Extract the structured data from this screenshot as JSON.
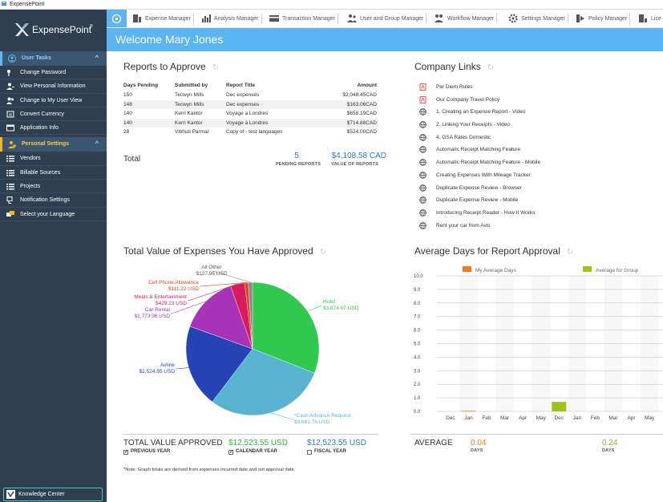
{
  "window": {
    "title": "ExpensePoint"
  },
  "brand": {
    "logo_text": "ExpensePoint",
    "reg": "®"
  },
  "sidebar": {
    "user_tasks": {
      "title": "User Tasks",
      "items": [
        {
          "label": "Change Password",
          "icon": "key-icon"
        },
        {
          "label": "View Personal Information",
          "icon": "person-icon"
        },
        {
          "label": "Change to My User View",
          "icon": "users-icon"
        },
        {
          "label": "Convert Currency",
          "icon": "currency-icon"
        },
        {
          "label": "Application Info",
          "icon": "app-info-icon"
        }
      ]
    },
    "personal_settings": {
      "title": "Personal Settings",
      "items": [
        {
          "label": "Vendors",
          "icon": "list-icon"
        },
        {
          "label": "Billable Sources",
          "icon": "list-icon"
        },
        {
          "label": "Projects",
          "icon": "list-icon"
        },
        {
          "label": "Notification Settings",
          "icon": "notification-icon"
        },
        {
          "label": "Select your Language",
          "icon": "language-icon"
        }
      ]
    },
    "knowledge_center": "Knowledge Center"
  },
  "topnav": {
    "tabs": [
      {
        "label": "Expense Manager",
        "icon": "expense-icon"
      },
      {
        "label": "Analysis Manager",
        "icon": "chart-icon"
      },
      {
        "label": "Transaction Manager",
        "icon": "transaction-icon"
      },
      {
        "label": "User and Group Manager",
        "icon": "users-icon"
      },
      {
        "label": "Workflow Manager",
        "icon": "workflow-icon"
      },
      {
        "label": "Settings Manager",
        "icon": "gear-icon"
      },
      {
        "label": "Policy Manager",
        "icon": "policy-icon"
      },
      {
        "label": "Lice",
        "icon": "license-icon"
      }
    ]
  },
  "welcome": "Welcome Mary Jones",
  "reports": {
    "title": "Reports to Approve",
    "headers": [
      "Days Pending",
      "Submitted by",
      "Report Title",
      "Amount"
    ],
    "rows": [
      [
        "150",
        "Tecwyn Mills",
        "Dec expenses",
        "$2,048.45CAD"
      ],
      [
        "148",
        "Tecwyn Mills",
        "Dec expenses",
        "$163.06CAD"
      ],
      [
        "140",
        "Kerri Kantor",
        "Voyage a Londres",
        "$658.19CAD"
      ],
      [
        "140",
        "Kerri Kantor",
        "Voyage à Londres",
        "$714.88CAD"
      ],
      [
        "28",
        "Vibhuti Parmar",
        "Copy of - test languages",
        "$524.00CAD"
      ]
    ],
    "total_label": "Total",
    "pending_count": "5",
    "pending_label": "PENDING REPORTS",
    "value": "$4,108.58 CAD",
    "value_label": "VALUE OF REPORTS"
  },
  "company_links": {
    "title": "Company Links",
    "items": [
      {
        "label": "Per Diem Rules",
        "icon": "pdf-icon"
      },
      {
        "label": "Our Company Travel Policy",
        "icon": "pdf-icon"
      },
      {
        "label": "1. Creating an Expense Report - Video",
        "icon": "globe-icon"
      },
      {
        "label": "2. Linking Your Receipts - Video",
        "icon": "globe-icon"
      },
      {
        "label": "4. GSA Rates Domestic",
        "icon": "globe-icon"
      },
      {
        "label": "Automatic Receipt Matching Feature",
        "icon": "globe-icon"
      },
      {
        "label": "Automatic Receipt Matching Feature - Mobile",
        "icon": "globe-icon"
      },
      {
        "label": "Creating Expenses With Mileage Tracker",
        "icon": "globe-icon"
      },
      {
        "label": "Duplicate Expense Review - Browser",
        "icon": "globe-icon"
      },
      {
        "label": "Duplicate Expense Review - Mobile",
        "icon": "globe-icon"
      },
      {
        "label": "Introducing Receipt Reader - How It Works",
        "icon": "globe-icon"
      },
      {
        "label": "Rent your car from Avis",
        "icon": "globe-icon"
      }
    ]
  },
  "pie_section": {
    "title": "Total Value of Expenses You Have Approved",
    "total_label": "TOTAL VALUE APPROVED",
    "values": [
      "$12,523.55 USD",
      "$12,523.55 USD"
    ],
    "checks": [
      {
        "label": "PREVIOUS YEAR",
        "checked": true
      },
      {
        "label": "CALENDAR YEAR",
        "checked": true
      },
      {
        "label": "FISCAL YEAR",
        "checked": false
      }
    ],
    "note": "*Note: Graph totals are derived from expenses incurred date and not approval date."
  },
  "bar_section": {
    "title": "Average Days for Report Approval",
    "avg_label": "AVERAGE",
    "my_avg": "0.04",
    "group_avg": "0.24",
    "days_label": "DAYS"
  },
  "chart_data": [
    {
      "type": "pie",
      "categories": [
        "Hotel",
        "*Cash Advance Request",
        "Airline",
        "Car Rental",
        "Meals & Entertainment",
        "Cell Phone Allowance",
        "All Other"
      ],
      "values": [
        3874.87,
        3681.76,
        2524.55,
        1773.96,
        429.23,
        111.22,
        127.96
      ],
      "value_labels": [
        "$3,874.87 USD",
        "$3,681.76 USD",
        "$2,524.55 USD",
        "$1,773.96 USD",
        "$429.23 USD",
        "$111.22 USD",
        "$127.96 USD"
      ],
      "colors": [
        "#2fc94f",
        "#57b3d0",
        "#2543b5",
        "#a832b8",
        "#d81b5a",
        "#e04420",
        "#8a8a8a"
      ]
    },
    {
      "type": "bar",
      "categories": [
        "Dec",
        "Jan",
        "Feb",
        "Mar",
        "Apr",
        "May",
        "Dec",
        "Jan",
        "Feb",
        "Mar",
        "Apr",
        "May"
      ],
      "series": [
        {
          "name": "My Average Days",
          "color": "#f07d1a",
          "values": [
            0,
            0.04,
            0,
            0,
            0,
            0,
            null,
            null,
            null,
            null,
            null,
            null
          ]
        },
        {
          "name": "Average for Group",
          "color": "#9dc31b",
          "values": [
            null,
            null,
            null,
            null,
            null,
            null,
            0.7,
            0,
            0,
            0,
            0,
            0
          ]
        }
      ],
      "ylim": [
        0,
        10
      ],
      "yticks": [
        "0.0",
        "1.0",
        "2.0",
        "3.0",
        "4.0",
        "5.0",
        "6.0",
        "7.0",
        "8.0",
        "9.0",
        "10.0"
      ],
      "grid": true
    }
  ]
}
